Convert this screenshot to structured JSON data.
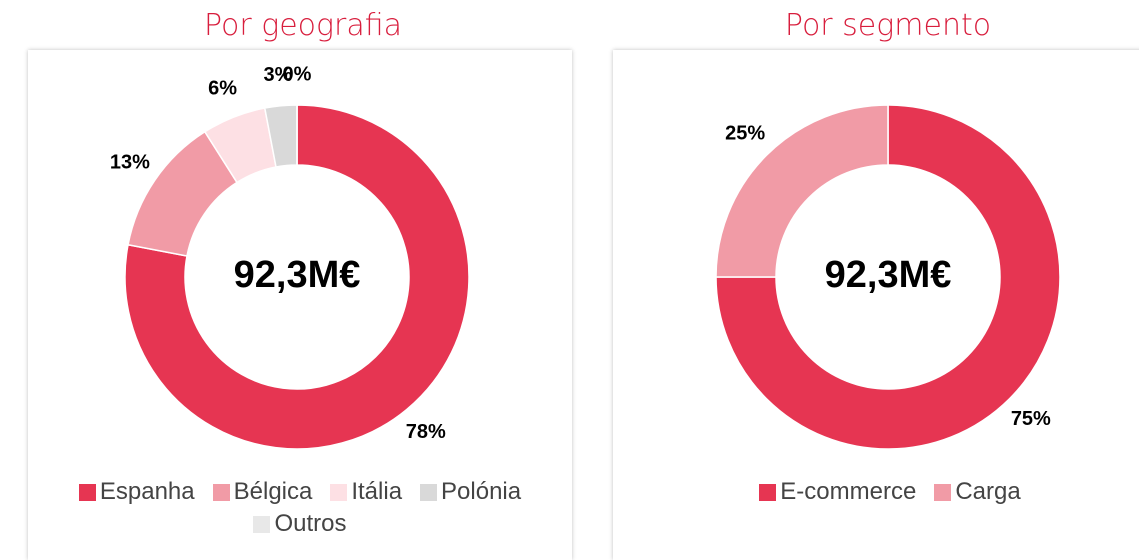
{
  "chart_data": [
    {
      "type": "donut",
      "title": "Por geografia",
      "center_label": "92,3M€",
      "categories": [
        "Espanha",
        "Bélgica",
        "Itália",
        "Polónia",
        "Outros"
      ],
      "values": [
        78,
        13,
        6,
        3,
        0
      ],
      "value_labels": [
        "78%",
        "13%",
        "6%",
        "3%",
        "0%"
      ],
      "colors": [
        "#e63552",
        "#f19ba6",
        "#fde0e4",
        "#d9d9d9",
        "#e8e8e8"
      ]
    },
    {
      "type": "donut",
      "title": "Por segmento",
      "center_label": "92,3M€",
      "categories": [
        "E-commerce",
        "Carga"
      ],
      "values": [
        75,
        25
      ],
      "value_labels": [
        "75%",
        "25%"
      ],
      "colors": [
        "#e63552",
        "#f19ba6"
      ]
    }
  ]
}
